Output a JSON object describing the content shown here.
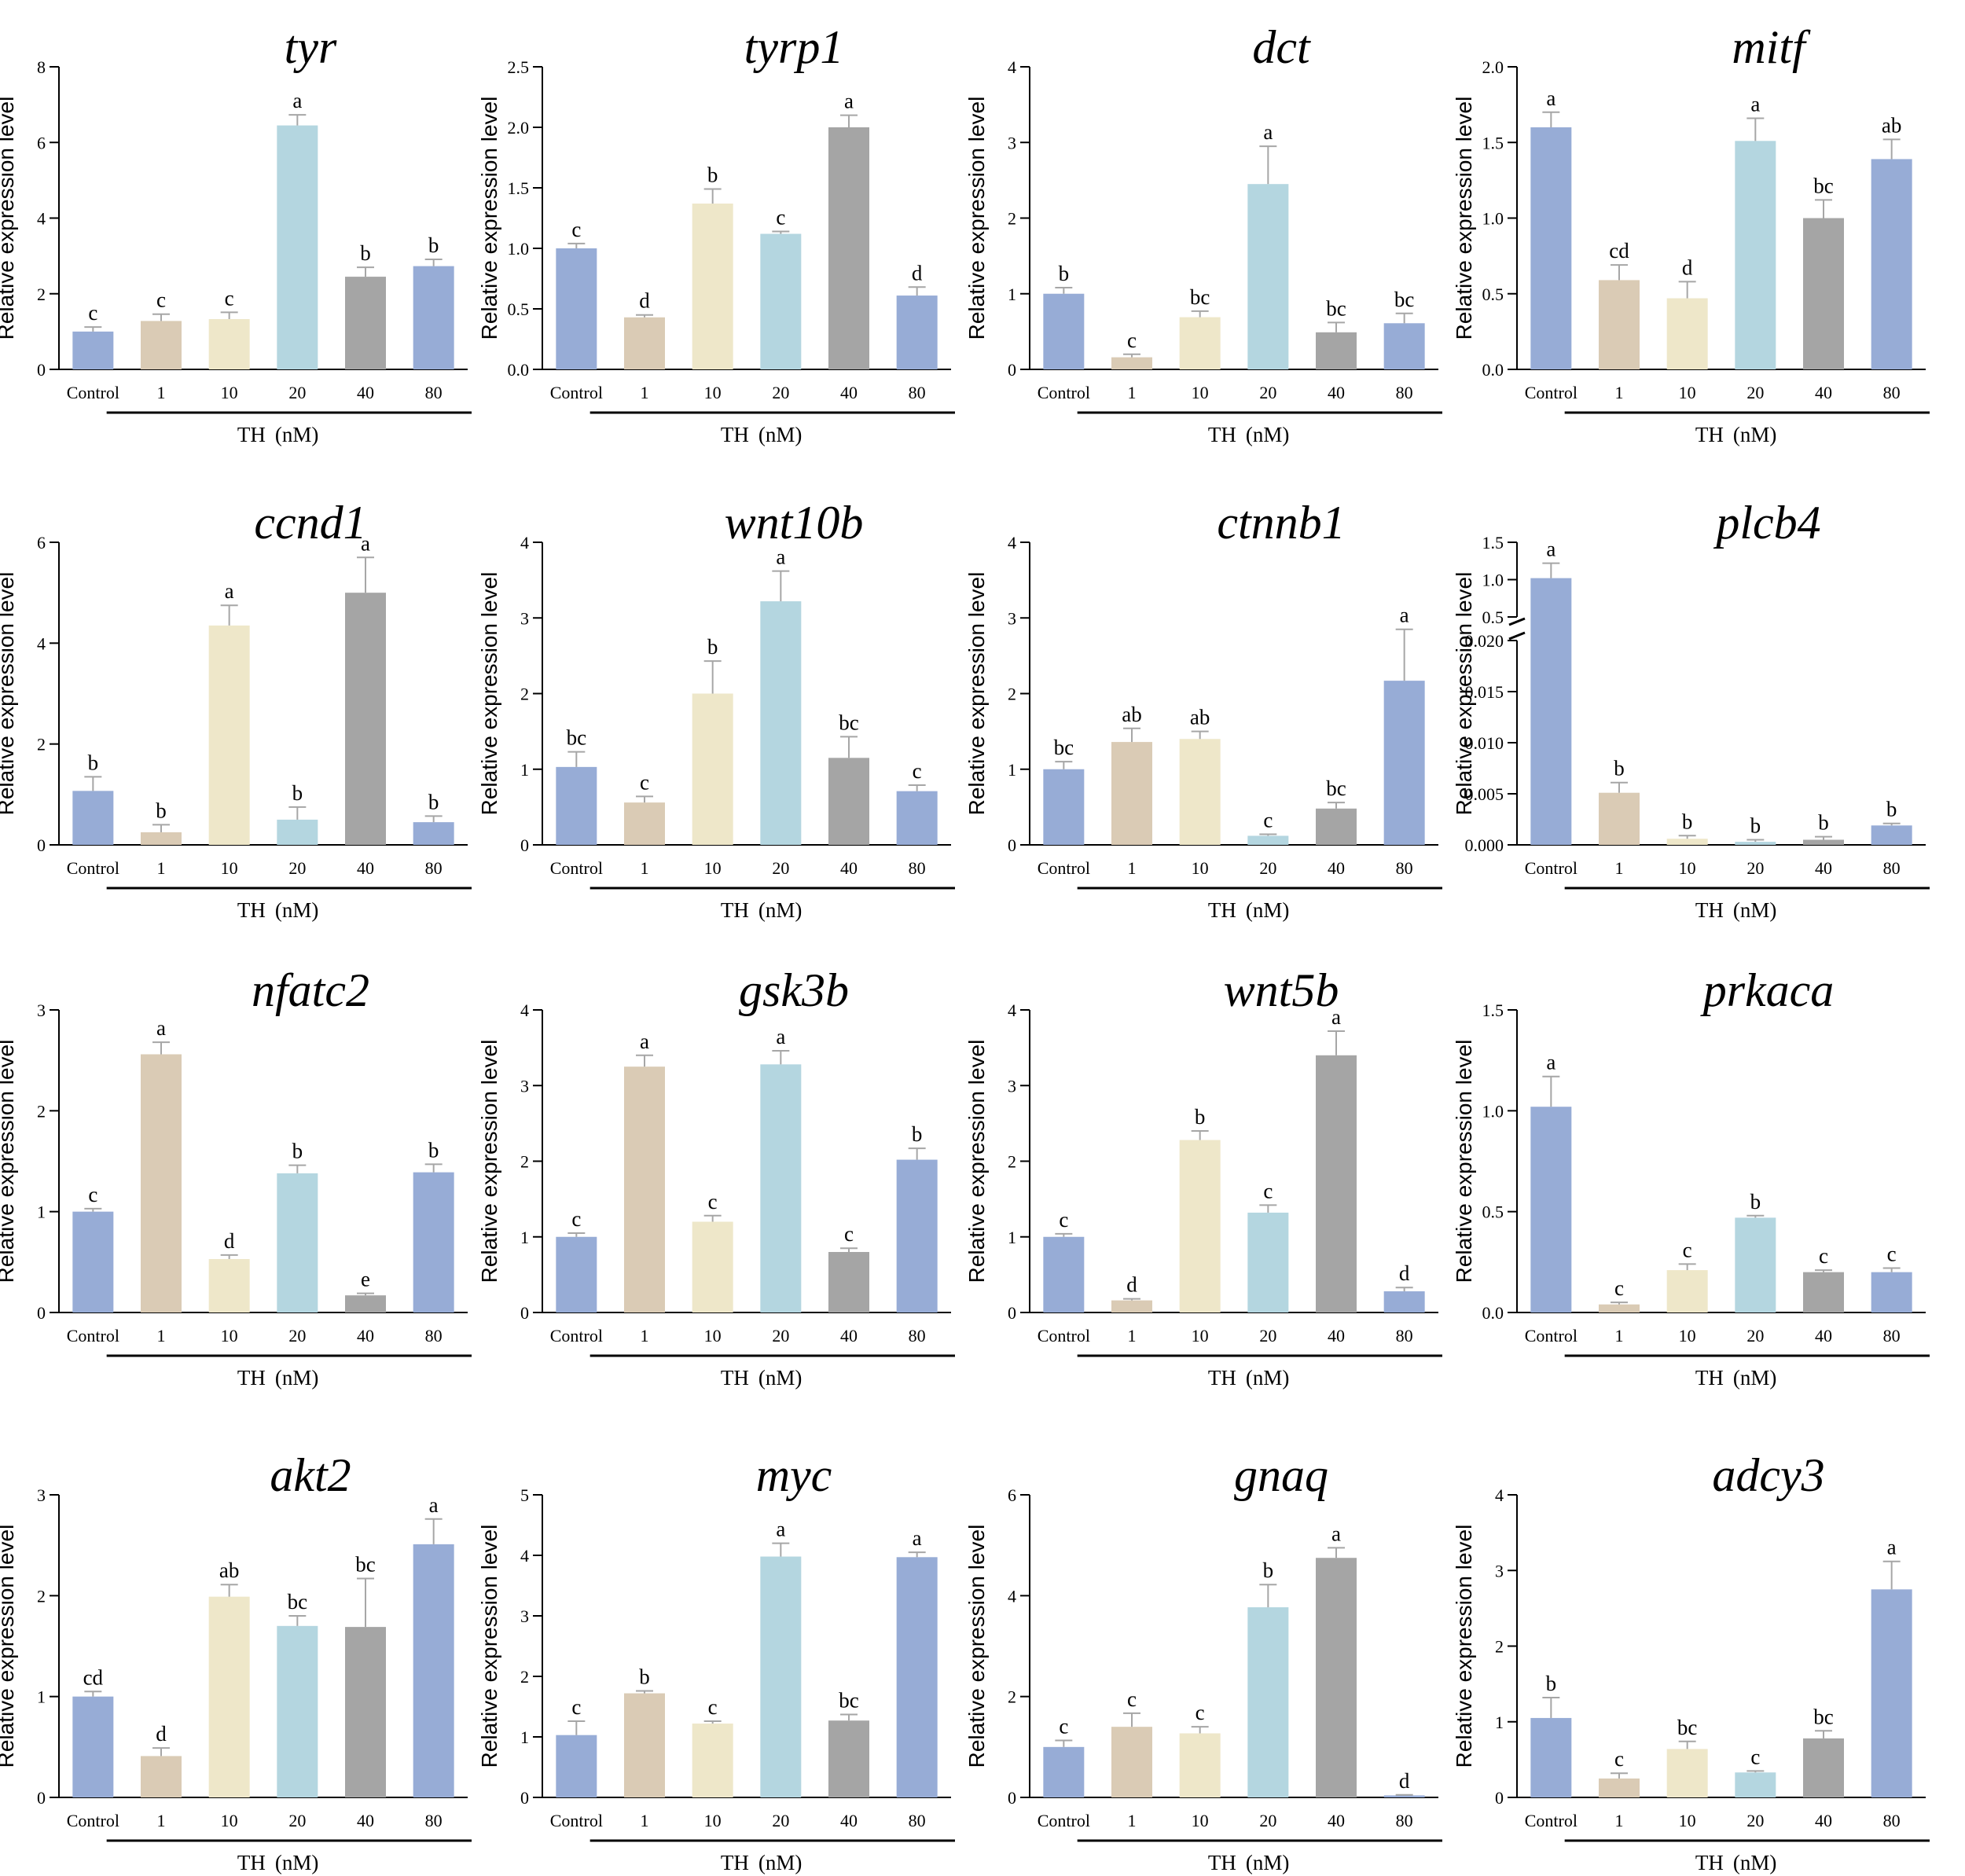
{
  "figure": {
    "group_label": "TH",
    "unit_label": "(nM)"
  },
  "colors": {
    "Control": "#97acd6",
    "1": "#dacbb5",
    "10": "#eee7c9",
    "20": "#b4d6e0",
    "40": "#a5a5a5",
    "80": "#97acd6",
    "axis": "#000000",
    "error": "#a6a6a6"
  },
  "chart_data": [
    {
      "type": "bar",
      "title": "tyr",
      "ylabel": "Relative expression level",
      "ylim": [
        0,
        8
      ],
      "yticks": [
        "0",
        "2",
        "4",
        "6",
        "8"
      ],
      "categories": [
        "Control",
        "1",
        "10",
        "20",
        "40",
        "80"
      ],
      "values": [
        1.0,
        1.28,
        1.33,
        6.45,
        2.45,
        2.73
      ],
      "errors": [
        0.12,
        0.18,
        0.18,
        0.28,
        0.25,
        0.18
      ],
      "labels": [
        "c",
        "c",
        "c",
        "a",
        "b",
        "b"
      ]
    },
    {
      "type": "bar",
      "title": "tyrp1",
      "ylabel": "Relative expression level",
      "ylim": [
        0,
        2.5
      ],
      "yticks": [
        "0.0",
        "0.5",
        "1.0",
        "1.5",
        "2.0",
        "2.5"
      ],
      "categories": [
        "Control",
        "1",
        "10",
        "20",
        "40",
        "80"
      ],
      "values": [
        1.0,
        0.43,
        1.37,
        1.12,
        2.0,
        0.61
      ],
      "errors": [
        0.04,
        0.02,
        0.12,
        0.02,
        0.1,
        0.07
      ],
      "labels": [
        "c",
        "d",
        "b",
        "c",
        "a",
        "d"
      ]
    },
    {
      "type": "bar",
      "title": "dct",
      "ylabel": "Relative expression level",
      "ylim": [
        0,
        4
      ],
      "yticks": [
        "0",
        "1",
        "2",
        "3",
        "4"
      ],
      "categories": [
        "Control",
        "1",
        "10",
        "20",
        "40",
        "80"
      ],
      "values": [
        1.0,
        0.16,
        0.69,
        2.45,
        0.49,
        0.61
      ],
      "errors": [
        0.08,
        0.04,
        0.08,
        0.5,
        0.13,
        0.13
      ],
      "labels": [
        "b",
        "c",
        "bc",
        "a",
        "bc",
        "bc"
      ]
    },
    {
      "type": "bar",
      "title": "mitf",
      "ylabel": "Relative expression level",
      "ylim": [
        0,
        2.0
      ],
      "yticks": [
        "0.0",
        "0.5",
        "1.0",
        "1.5",
        "2.0"
      ],
      "categories": [
        "Control",
        "1",
        "10",
        "20",
        "40",
        "80"
      ],
      "values": [
        1.6,
        0.59,
        0.47,
        1.51,
        1.0,
        1.39
      ],
      "errors": [
        0.1,
        0.1,
        0.11,
        0.15,
        0.12,
        0.13
      ],
      "labels": [
        "a",
        "cd",
        "d",
        "a",
        "bc",
        "ab"
      ]
    },
    {
      "type": "bar",
      "title": "ccnd1",
      "ylabel": "Relative expression level",
      "ylim": [
        0,
        6
      ],
      "yticks": [
        "0",
        "2",
        "4",
        "6"
      ],
      "categories": [
        "Control",
        "1",
        "10",
        "20",
        "40",
        "80"
      ],
      "values": [
        1.07,
        0.25,
        4.35,
        0.5,
        5.0,
        0.45
      ],
      "errors": [
        0.28,
        0.15,
        0.4,
        0.25,
        0.7,
        0.12
      ],
      "labels": [
        "b",
        "b",
        "a",
        "b",
        "a",
        "b"
      ]
    },
    {
      "type": "bar",
      "title": "wnt10b",
      "ylabel": "Relative expression level",
      "ylim": [
        0,
        4
      ],
      "yticks": [
        "0",
        "1",
        "2",
        "3",
        "4"
      ],
      "categories": [
        "Control",
        "1",
        "10",
        "20",
        "40",
        "80"
      ],
      "values": [
        1.03,
        0.56,
        2.0,
        3.22,
        1.15,
        0.71
      ],
      "errors": [
        0.2,
        0.08,
        0.43,
        0.4,
        0.28,
        0.08
      ],
      "labels": [
        "bc",
        "c",
        "b",
        "a",
        "bc",
        "c"
      ]
    },
    {
      "type": "bar",
      "title": "ctnnb1",
      "ylabel": "Relative expression level",
      "ylim": [
        0,
        4
      ],
      "yticks": [
        "0",
        "1",
        "2",
        "3",
        "4"
      ],
      "categories": [
        "Control",
        "1",
        "10",
        "20",
        "40",
        "80"
      ],
      "values": [
        1.0,
        1.36,
        1.4,
        0.12,
        0.48,
        2.17
      ],
      "errors": [
        0.1,
        0.18,
        0.1,
        0.02,
        0.08,
        0.68
      ],
      "labels": [
        "bc",
        "ab",
        "ab",
        "c",
        "bc",
        "a"
      ]
    },
    {
      "type": "bar",
      "title": "plcb4",
      "ylabel": "Relative expression level",
      "ylim": [
        0,
        1.5
      ],
      "broken_axis": {
        "lower": [
          0,
          0.02
        ],
        "upper": [
          0.5,
          1.5
        ]
      },
      "yticks_lower": [
        "0.000",
        "0.005",
        "0.010",
        "0.015",
        "0.020"
      ],
      "yticks_upper": [
        "0.5",
        "1.0",
        "1.5"
      ],
      "categories": [
        "Control",
        "1",
        "10",
        "20",
        "40",
        "80"
      ],
      "values": [
        1.02,
        0.0051,
        0.0006,
        0.0003,
        0.0005,
        0.0019
      ],
      "errors": [
        0.2,
        0.001,
        0.0003,
        0.0002,
        0.0003,
        0.0002
      ],
      "labels": [
        "a",
        "b",
        "b",
        "b",
        "b",
        "b"
      ]
    },
    {
      "type": "bar",
      "title": "nfatc2",
      "ylabel": "Relative expression level",
      "ylim": [
        0,
        3
      ],
      "yticks": [
        "0",
        "1",
        "2",
        "3"
      ],
      "categories": [
        "Control",
        "1",
        "10",
        "20",
        "40",
        "80"
      ],
      "values": [
        1.0,
        2.56,
        0.53,
        1.38,
        0.17,
        1.39
      ],
      "errors": [
        0.03,
        0.12,
        0.04,
        0.08,
        0.02,
        0.08
      ],
      "labels": [
        "c",
        "a",
        "d",
        "b",
        "e",
        "b"
      ]
    },
    {
      "type": "bar",
      "title": "gsk3b",
      "ylabel": "Relative expression level",
      "ylim": [
        0,
        4
      ],
      "yticks": [
        "0",
        "1",
        "2",
        "3",
        "4"
      ],
      "categories": [
        "Control",
        "1",
        "10",
        "20",
        "40",
        "80"
      ],
      "values": [
        1.0,
        3.25,
        1.2,
        3.28,
        0.8,
        2.02
      ],
      "errors": [
        0.05,
        0.15,
        0.08,
        0.18,
        0.05,
        0.15
      ],
      "labels": [
        "c",
        "a",
        "c",
        "a",
        "c",
        "b"
      ]
    },
    {
      "type": "bar",
      "title": "wnt5b",
      "ylabel": "Relative expression level",
      "ylim": [
        0,
        4
      ],
      "yticks": [
        "0",
        "1",
        "2",
        "3",
        "4"
      ],
      "categories": [
        "Control",
        "1",
        "10",
        "20",
        "40",
        "80"
      ],
      "values": [
        1.0,
        0.16,
        2.28,
        1.32,
        3.4,
        0.28
      ],
      "errors": [
        0.04,
        0.02,
        0.12,
        0.1,
        0.32,
        0.05
      ],
      "labels": [
        "c",
        "d",
        "b",
        "c",
        "a",
        "d"
      ]
    },
    {
      "type": "bar",
      "title": "prkaca",
      "ylabel": "Relative expression level",
      "ylim": [
        0,
        1.5
      ],
      "yticks": [
        "0.0",
        "0.5",
        "1.0",
        "1.5"
      ],
      "categories": [
        "Control",
        "1",
        "10",
        "20",
        "40",
        "80"
      ],
      "values": [
        1.02,
        0.04,
        0.21,
        0.47,
        0.2,
        0.2
      ],
      "errors": [
        0.15,
        0.01,
        0.03,
        0.01,
        0.01,
        0.02
      ],
      "labels": [
        "a",
        "c",
        "c",
        "b",
        "c",
        "c"
      ]
    },
    {
      "type": "bar",
      "title": "akt2",
      "ylabel": "Relative expression level",
      "ylim": [
        0,
        3
      ],
      "yticks": [
        "0",
        "1",
        "2",
        "3"
      ],
      "categories": [
        "Control",
        "1",
        "10",
        "20",
        "40",
        "80"
      ],
      "values": [
        1.0,
        0.41,
        1.99,
        1.7,
        1.69,
        2.51
      ],
      "errors": [
        0.05,
        0.08,
        0.12,
        0.1,
        0.48,
        0.25
      ],
      "labels": [
        "cd",
        "d",
        "ab",
        "bc",
        "bc",
        "a"
      ]
    },
    {
      "type": "bar",
      "title": "myc",
      "ylabel": "Relative expression level",
      "ylim": [
        0,
        5
      ],
      "yticks": [
        "0",
        "1",
        "2",
        "3",
        "4",
        "5"
      ],
      "categories": [
        "Control",
        "1",
        "10",
        "20",
        "40",
        "80"
      ],
      "values": [
        1.03,
        1.72,
        1.22,
        3.98,
        1.27,
        3.97
      ],
      "errors": [
        0.23,
        0.04,
        0.04,
        0.22,
        0.1,
        0.08
      ],
      "labels": [
        "c",
        "b",
        "c",
        "a",
        "bc",
        "a"
      ]
    },
    {
      "type": "bar",
      "title": "gnaq",
      "ylabel": "Relative expression level",
      "ylim": [
        0,
        6
      ],
      "yticks": [
        "0",
        "2",
        "4",
        "6"
      ],
      "categories": [
        "Control",
        "1",
        "10",
        "20",
        "40",
        "80"
      ],
      "values": [
        1.0,
        1.4,
        1.27,
        3.77,
        4.75,
        0.04
      ],
      "errors": [
        0.13,
        0.27,
        0.13,
        0.45,
        0.2,
        0.01
      ],
      "labels": [
        "c",
        "c",
        "c",
        "b",
        "a",
        "d"
      ]
    },
    {
      "type": "bar",
      "title": "adcy3",
      "ylabel": "Relative expression level",
      "ylim": [
        0,
        4
      ],
      "yticks": [
        "0",
        "1",
        "2",
        "3",
        "4"
      ],
      "categories": [
        "Control",
        "1",
        "10",
        "20",
        "40",
        "80"
      ],
      "values": [
        1.05,
        0.25,
        0.64,
        0.33,
        0.78,
        2.75
      ],
      "errors": [
        0.27,
        0.07,
        0.1,
        0.02,
        0.1,
        0.37
      ],
      "labels": [
        "b",
        "c",
        "bc",
        "c",
        "bc",
        "a"
      ]
    }
  ]
}
